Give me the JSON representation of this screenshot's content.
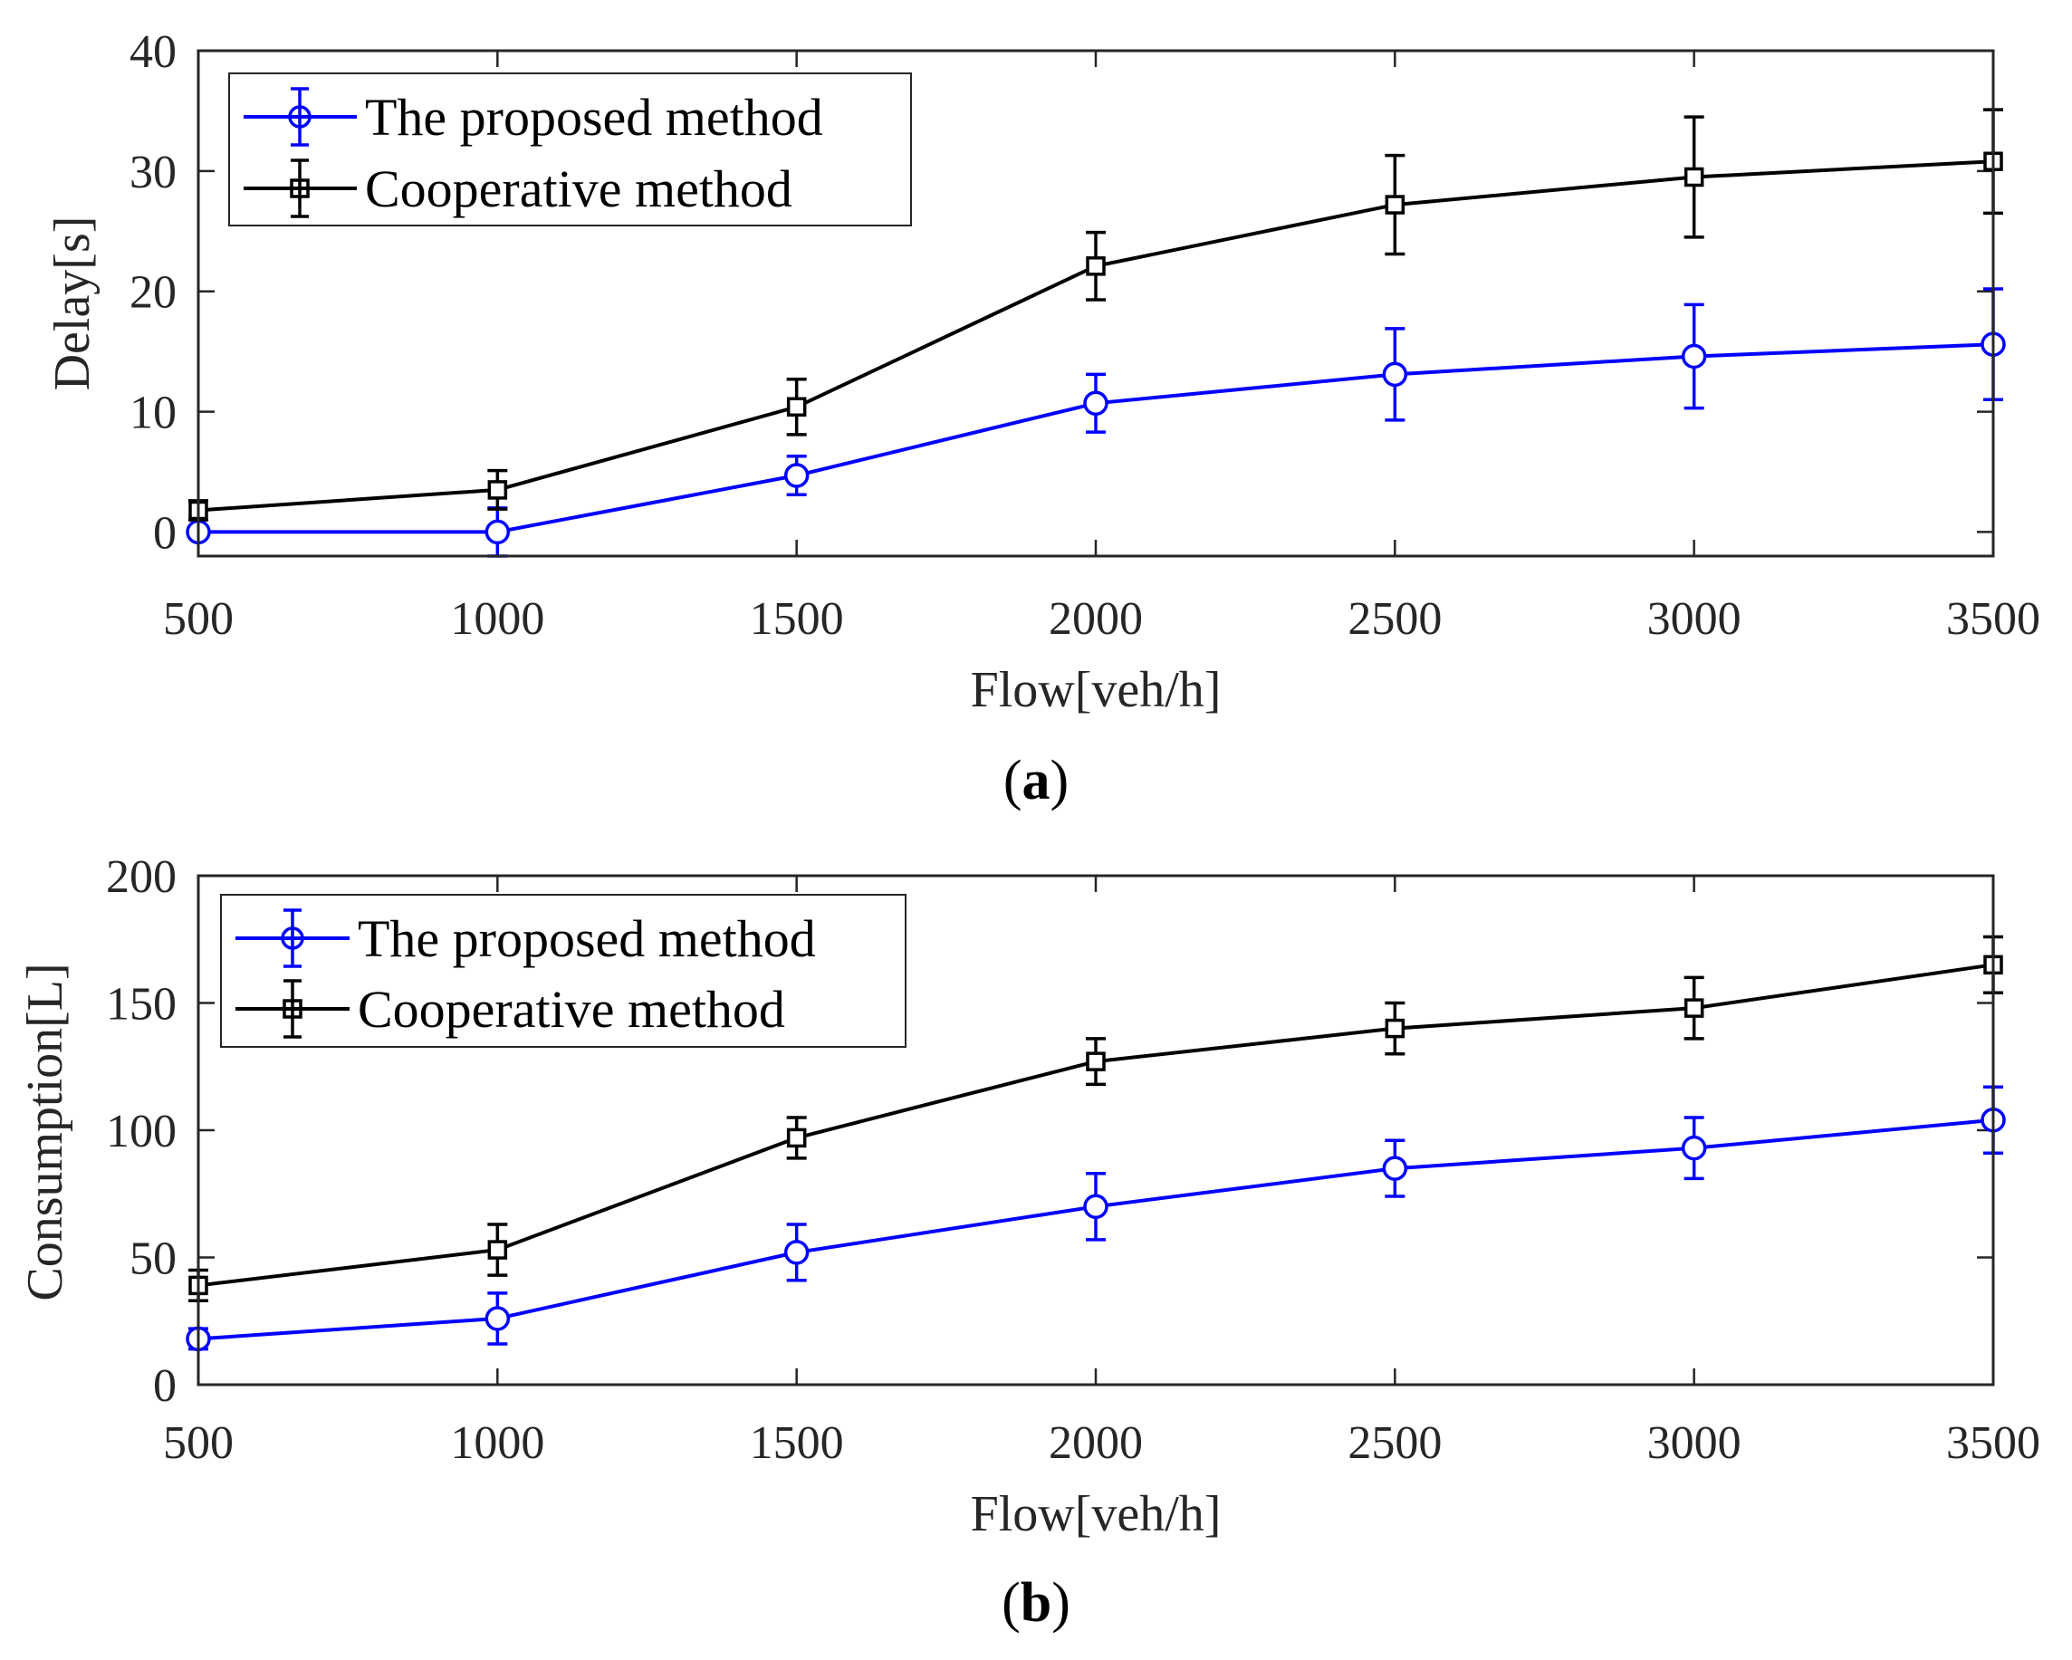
{
  "chart_data": [
    {
      "type": "line",
      "panel": "a",
      "caption_letter": "a",
      "xlabel": "Flow[veh/h]",
      "ylabel": "Delay[s]",
      "xlim": [
        500,
        3500
      ],
      "ylim": [
        -2,
        40
      ],
      "x_ticks": [
        500,
        1000,
        1500,
        2000,
        2500,
        3000,
        3500
      ],
      "y_ticks": [
        0,
        10,
        20,
        30,
        40
      ],
      "x": [
        500,
        1000,
        1500,
        2000,
        2500,
        3000,
        3500
      ],
      "legend_position": "top-left",
      "series": [
        {
          "name": "The proposed method",
          "color": "#0000ff",
          "marker": "circle",
          "values": [
            0,
            0,
            4.7,
            10.7,
            13.1,
            14.6,
            15.6
          ],
          "errors": [
            0,
            2,
            1.6,
            2.4,
            3.8,
            4.3,
            4.6
          ]
        },
        {
          "name": "Cooperative method",
          "color": "#000000",
          "marker": "square",
          "values": [
            1.8,
            3.5,
            10.4,
            22.1,
            27.2,
            29.5,
            30.8
          ],
          "errors": [
            0.8,
            1.6,
            2.3,
            2.8,
            4.1,
            5.0,
            4.3
          ]
        }
      ]
    },
    {
      "type": "line",
      "panel": "b",
      "caption_letter": "b",
      "xlabel": "Flow[veh/h]",
      "ylabel": "Consumption[L]",
      "xlim": [
        500,
        3500
      ],
      "ylim": [
        0,
        200
      ],
      "x_ticks": [
        500,
        1000,
        1500,
        2000,
        2500,
        3000,
        3500
      ],
      "y_ticks": [
        0,
        50,
        100,
        150,
        200
      ],
      "x": [
        500,
        1000,
        1500,
        2000,
        2500,
        3000,
        3500
      ],
      "legend_position": "top-left",
      "series": [
        {
          "name": "The proposed method",
          "color": "#0000ff",
          "marker": "circle",
          "values": [
            18,
            26,
            52,
            70,
            85,
            93,
            104
          ],
          "errors": [
            4,
            10,
            11,
            13,
            11,
            12,
            13
          ]
        },
        {
          "name": "Cooperative method",
          "color": "#000000",
          "marker": "square",
          "values": [
            39,
            53,
            97,
            127,
            140,
            148,
            165
          ],
          "errors": [
            6,
            10,
            8,
            9,
            10,
            12,
            11
          ]
        }
      ]
    }
  ]
}
